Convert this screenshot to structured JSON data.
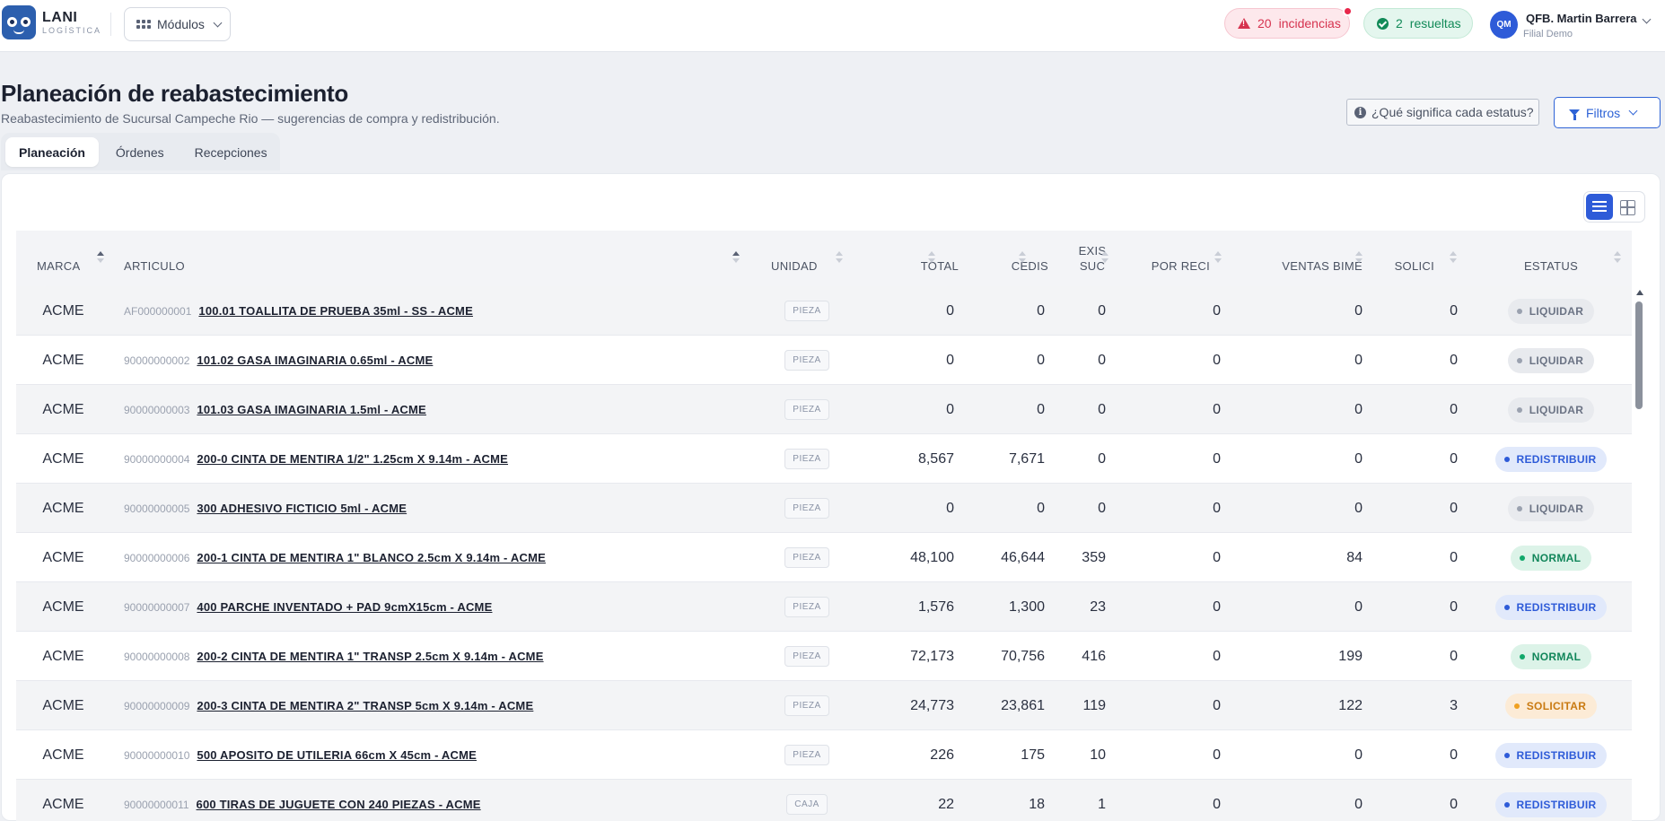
{
  "header": {
    "logo_line1": "LANI",
    "logo_line2": "LOGÍSTICA",
    "modules_label": "Módulos",
    "incidents_count": "20",
    "incidents_label": "incidencias",
    "resolved_count": "2",
    "resolved_label": "resueltas",
    "avatar_initials": "QM",
    "user_name": "QFB. Martin Barrera",
    "user_branch": "Filial Demo"
  },
  "page": {
    "title": "Planeación de reabastecimiento",
    "subtitle": "Reabastecimiento de Sucursal Campeche Rio — sugerencias de compra y redistribución.",
    "help_label": "¿Qué significa cada estatus?",
    "filters_label": "Filtros"
  },
  "tabs": [
    {
      "label": "Planeación",
      "active": true
    },
    {
      "label": "Órdenes",
      "active": false
    },
    {
      "label": "Recepciones",
      "active": false
    }
  ],
  "table": {
    "columns": {
      "marca": "MARCA",
      "articulo": "ARTICULO",
      "unidad": "UNIDAD",
      "total": "TOTAL",
      "cedis": "CEDIS",
      "exis_1": "EXIS",
      "exis_2": "SUC",
      "por_reci": "POR RECI",
      "ventas": "VENTAS BIME",
      "solici": "SOLICI",
      "estatus": "ESTATUS"
    },
    "rows": [
      {
        "marca": "ACME",
        "code": "AF000000001",
        "articulo": "100.01 TOALLITA DE PRUEBA 35ml - SS - ACME",
        "unidad": "PIEZA",
        "total": "0",
        "cedis": "0",
        "exis": "0",
        "por_reci": "0",
        "ventas": "0",
        "solici": "0",
        "status": "LIQUIDAR"
      },
      {
        "marca": "ACME",
        "code": "90000000002",
        "articulo": "101.02 GASA IMAGINARIA 0.65ml - ACME",
        "unidad": "PIEZA",
        "total": "0",
        "cedis": "0",
        "exis": "0",
        "por_reci": "0",
        "ventas": "0",
        "solici": "0",
        "status": "LIQUIDAR"
      },
      {
        "marca": "ACME",
        "code": "90000000003",
        "articulo": "101.03 GASA IMAGINARIA 1.5ml - ACME",
        "unidad": "PIEZA",
        "total": "0",
        "cedis": "0",
        "exis": "0",
        "por_reci": "0",
        "ventas": "0",
        "solici": "0",
        "status": "LIQUIDAR"
      },
      {
        "marca": "ACME",
        "code": "90000000004",
        "articulo": "200-0 CINTA DE MENTIRA 1/2\" 1.25cm X 9.14m - ACME",
        "unidad": "PIEZA",
        "total": "8,567",
        "cedis": "7,671",
        "exis": "0",
        "por_reci": "0",
        "ventas": "0",
        "solici": "0",
        "status": "REDISTRIBUIR"
      },
      {
        "marca": "ACME",
        "code": "90000000005",
        "articulo": "300 ADHESIVO FICTICIO 5ml - ACME",
        "unidad": "PIEZA",
        "total": "0",
        "cedis": "0",
        "exis": "0",
        "por_reci": "0",
        "ventas": "0",
        "solici": "0",
        "status": "LIQUIDAR"
      },
      {
        "marca": "ACME",
        "code": "90000000006",
        "articulo": "200-1 CINTA DE MENTIRA 1\" BLANCO 2.5cm X 9.14m - ACME",
        "unidad": "PIEZA",
        "total": "48,100",
        "cedis": "46,644",
        "exis": "359",
        "por_reci": "0",
        "ventas": "84",
        "solici": "0",
        "status": "NORMAL"
      },
      {
        "marca": "ACME",
        "code": "90000000007",
        "articulo": "400 PARCHE INVENTADO + PAD 9cmX15cm - ACME",
        "unidad": "PIEZA",
        "total": "1,576",
        "cedis": "1,300",
        "exis": "23",
        "por_reci": "0",
        "ventas": "0",
        "solici": "0",
        "status": "REDISTRIBUIR"
      },
      {
        "marca": "ACME",
        "code": "90000000008",
        "articulo": "200-2 CINTA DE MENTIRA 1\" TRANSP 2.5cm X 9.14m - ACME",
        "unidad": "PIEZA",
        "total": "72,173",
        "cedis": "70,756",
        "exis": "416",
        "por_reci": "0",
        "ventas": "199",
        "solici": "0",
        "status": "NORMAL"
      },
      {
        "marca": "ACME",
        "code": "90000000009",
        "articulo": "200-3 CINTA DE MENTIRA 2\" TRANSP 5cm X 9.14m - ACME",
        "unidad": "PIEZA",
        "total": "24,773",
        "cedis": "23,861",
        "exis": "119",
        "por_reci": "0",
        "ventas": "122",
        "solici": "3",
        "status": "SOLICITAR"
      },
      {
        "marca": "ACME",
        "code": "90000000010",
        "articulo": "500 APOSITO DE UTILERIA 66cm X 45cm - ACME",
        "unidad": "PIEZA",
        "total": "226",
        "cedis": "175",
        "exis": "10",
        "por_reci": "0",
        "ventas": "0",
        "solici": "0",
        "status": "REDISTRIBUIR"
      },
      {
        "marca": "ACME",
        "code": "90000000011",
        "articulo": "600 TIRAS DE JUGUETE CON 240 PIEZAS - ACME",
        "unidad": "CAJA",
        "total": "22",
        "cedis": "18",
        "exis": "1",
        "por_reci": "0",
        "ventas": "0",
        "solici": "0",
        "status": "REDISTRIBUIR"
      }
    ]
  },
  "status_colors": {
    "LIQUIDAR": {
      "bg": "#e8eaee",
      "fg": "#6b7384",
      "dot": "#9aa1af"
    },
    "REDISTRIBUIR": {
      "bg": "#e1e9fb",
      "fg": "#2e5bd8",
      "dot": "#2e5bd8"
    },
    "NORMAL": {
      "bg": "#dcf3e8",
      "fg": "#11865a",
      "dot": "#11a86a"
    },
    "SOLICITAR": {
      "bg": "#fcebd6",
      "fg": "#c97a12",
      "dot": "#f0a020"
    }
  }
}
